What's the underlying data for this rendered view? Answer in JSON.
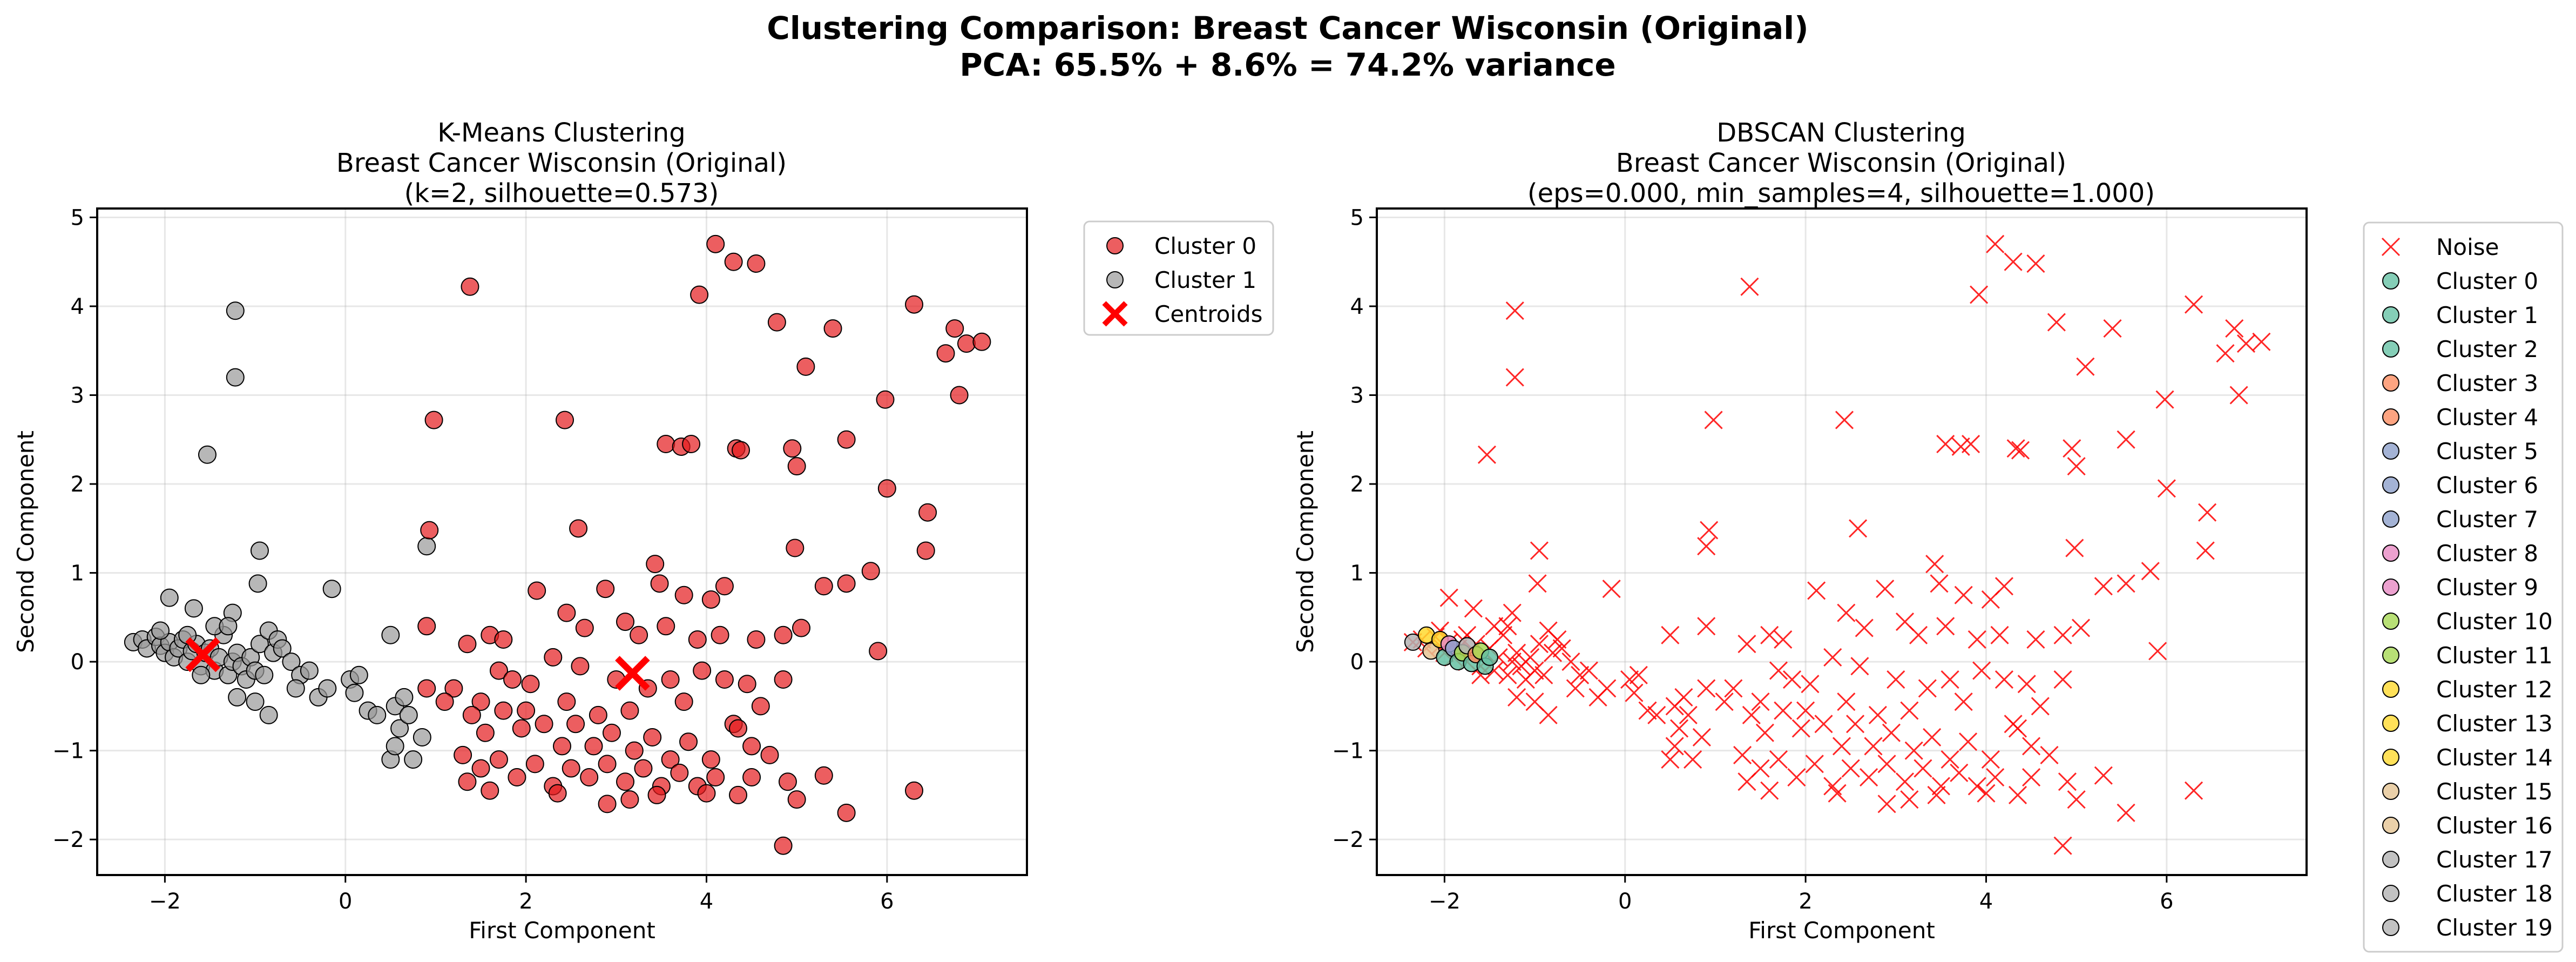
{
  "figure": {
    "title_line1": "Clustering Comparison: Breast Cancer Wisconsin (Original)",
    "title_line2": "PCA: 65.5% + 8.6% = 74.2% variance"
  },
  "colors": {
    "cluster0_red": "#e41a1c",
    "cluster1_gray": "#999999",
    "centroid": "#ff0000",
    "noise": "#ff0000",
    "dbscan_cluster_colors": [
      "#66c2a5",
      "#66c2a5",
      "#66c2a5",
      "#fc8d62",
      "#fc8d62",
      "#8da0cb",
      "#8da0cb",
      "#8da0cb",
      "#e78ac3",
      "#e78ac3",
      "#a6d854",
      "#a6d854",
      "#ffd92f",
      "#ffd92f",
      "#ffd92f",
      "#e5c494",
      "#e5c494",
      "#b3b3b3",
      "#b3b3b3",
      "#b3b3b3"
    ]
  },
  "chart_data": [
    {
      "type": "scatter",
      "title": [
        "K-Means Clustering",
        "Breast Cancer Wisconsin (Original)",
        "(k=2, silhouette=0.573)"
      ],
      "xlabel": "First Component",
      "ylabel": "Second Component",
      "xlim": [
        -2.75,
        7.55
      ],
      "ylim": [
        -2.4,
        5.1
      ],
      "xticks": [
        -2,
        0,
        2,
        4,
        6
      ],
      "yticks": [
        -2,
        -1,
        0,
        1,
        2,
        3,
        4,
        5
      ],
      "grid": true,
      "legend_position": "outside-upper-right",
      "series": [
        {
          "name": "Cluster 0",
          "marker": "circle",
          "color": "#e41a1c",
          "points": [
            [
              4.1,
              4.7
            ],
            [
              4.3,
              4.5
            ],
            [
              4.55,
              4.48
            ],
            [
              1.38,
              4.22
            ],
            [
              3.92,
              4.13
            ],
            [
              4.78,
              3.82
            ],
            [
              6.3,
              4.02
            ],
            [
              5.4,
              3.75
            ],
            [
              6.75,
              3.75
            ],
            [
              6.88,
              3.58
            ],
            [
              7.05,
              3.6
            ],
            [
              6.65,
              3.47
            ],
            [
              5.1,
              3.32
            ],
            [
              6.8,
              3.0
            ],
            [
              5.98,
              2.95
            ],
            [
              0.98,
              2.72
            ],
            [
              2.43,
              2.72
            ],
            [
              5.55,
              2.5
            ],
            [
              3.55,
              2.45
            ],
            [
              3.72,
              2.42
            ],
            [
              3.83,
              2.45
            ],
            [
              4.33,
              2.4
            ],
            [
              4.38,
              2.38
            ],
            [
              4.95,
              2.4
            ],
            [
              5.0,
              2.2
            ],
            [
              6.0,
              1.95
            ],
            [
              6.45,
              1.68
            ],
            [
              0.93,
              1.48
            ],
            [
              2.58,
              1.5
            ],
            [
              4.98,
              1.28
            ],
            [
              6.43,
              1.25
            ],
            [
              5.82,
              1.02
            ],
            [
              3.43,
              1.1
            ],
            [
              5.3,
              0.85
            ],
            [
              5.55,
              0.88
            ],
            [
              4.2,
              0.85
            ],
            [
              2.12,
              0.8
            ],
            [
              2.88,
              0.82
            ],
            [
              3.48,
              0.88
            ],
            [
              3.75,
              0.75
            ],
            [
              4.05,
              0.7
            ],
            [
              0.9,
              0.4
            ],
            [
              1.35,
              0.2
            ],
            [
              1.6,
              0.3
            ],
            [
              1.75,
              0.25
            ],
            [
              2.45,
              0.55
            ],
            [
              2.65,
              0.38
            ],
            [
              3.1,
              0.45
            ],
            [
              3.25,
              0.3
            ],
            [
              3.55,
              0.4
            ],
            [
              3.9,
              0.25
            ],
            [
              4.15,
              0.3
            ],
            [
              4.55,
              0.25
            ],
            [
              4.85,
              0.3
            ],
            [
              5.05,
              0.38
            ],
            [
              5.9,
              0.12
            ],
            [
              0.9,
              -0.3
            ],
            [
              1.2,
              -0.3
            ],
            [
              1.5,
              -0.45
            ],
            [
              1.7,
              -0.1
            ],
            [
              1.85,
              -0.2
            ],
            [
              2.05,
              -0.25
            ],
            [
              2.3,
              0.05
            ],
            [
              2.45,
              -0.45
            ],
            [
              2.6,
              -0.05
            ],
            [
              2.8,
              -0.6
            ],
            [
              3.15,
              -0.55
            ],
            [
              3.35,
              -0.3
            ],
            [
              3.6,
              -0.2
            ],
            [
              3.75,
              -0.45
            ],
            [
              3.95,
              -0.1
            ],
            [
              4.2,
              -0.2
            ],
            [
              4.45,
              -0.25
            ],
            [
              4.6,
              -0.5
            ],
            [
              4.85,
              -0.2
            ],
            [
              1.1,
              -0.45
            ],
            [
              1.4,
              -0.6
            ],
            [
              1.55,
              -0.8
            ],
            [
              1.75,
              -0.55
            ],
            [
              1.95,
              -0.75
            ],
            [
              2.2,
              -0.7
            ],
            [
              2.4,
              -0.95
            ],
            [
              2.55,
              -0.7
            ],
            [
              2.75,
              -0.95
            ],
            [
              2.95,
              -0.8
            ],
            [
              3.2,
              -1.0
            ],
            [
              3.4,
              -0.85
            ],
            [
              3.6,
              -1.1
            ],
            [
              3.8,
              -0.9
            ],
            [
              4.05,
              -1.1
            ],
            [
              4.3,
              -0.7
            ],
            [
              4.5,
              -0.95
            ],
            [
              4.7,
              -1.05
            ],
            [
              1.3,
              -1.05
            ],
            [
              1.5,
              -1.2
            ],
            [
              1.7,
              -1.1
            ],
            [
              1.9,
              -1.3
            ],
            [
              2.1,
              -1.15
            ],
            [
              2.3,
              -1.4
            ],
            [
              2.5,
              -1.2
            ],
            [
              2.7,
              -1.3
            ],
            [
              2.9,
              -1.15
            ],
            [
              3.1,
              -1.35
            ],
            [
              3.3,
              -1.2
            ],
            [
              3.5,
              -1.4
            ],
            [
              3.7,
              -1.25
            ],
            [
              3.9,
              -1.4
            ],
            [
              4.1,
              -1.3
            ],
            [
              1.35,
              -1.35
            ],
            [
              1.6,
              -1.45
            ],
            [
              2.35,
              -1.48
            ],
            [
              2.9,
              -1.6
            ],
            [
              3.15,
              -1.55
            ],
            [
              3.45,
              -1.5
            ],
            [
              4.0,
              -1.48
            ],
            [
              4.35,
              -1.5
            ],
            [
              4.5,
              -1.3
            ],
            [
              4.9,
              -1.35
            ],
            [
              5.0,
              -1.55
            ],
            [
              5.3,
              -1.28
            ],
            [
              5.55,
              -1.7
            ],
            [
              6.3,
              -1.45
            ],
            [
              4.85,
              -2.07
            ],
            [
              4.35,
              -0.75
            ],
            [
              2.0,
              -0.55
            ],
            [
              3.0,
              -0.2
            ]
          ]
        },
        {
          "name": "Cluster 1",
          "marker": "circle",
          "color": "#999999",
          "points": [
            [
              -1.22,
              3.95
            ],
            [
              -1.22,
              3.2
            ],
            [
              -1.53,
              2.33
            ],
            [
              -0.95,
              1.25
            ],
            [
              -0.15,
              0.82
            ],
            [
              0.9,
              1.3
            ],
            [
              -0.97,
              0.88
            ],
            [
              -1.95,
              0.72
            ],
            [
              -1.68,
              0.6
            ],
            [
              -1.25,
              0.55
            ],
            [
              0.5,
              0.3
            ],
            [
              -2.35,
              0.22
            ],
            [
              -2.25,
              0.25
            ],
            [
              -2.2,
              0.15
            ],
            [
              -2.1,
              0.28
            ],
            [
              -2.05,
              0.18
            ],
            [
              -2.0,
              0.1
            ],
            [
              -1.95,
              0.22
            ],
            [
              -1.9,
              0.05
            ],
            [
              -1.85,
              0.15
            ],
            [
              -1.8,
              0.25
            ],
            [
              -1.75,
              0.0
            ],
            [
              -1.7,
              0.12
            ],
            [
              -1.65,
              0.2
            ],
            [
              -1.6,
              -0.05
            ],
            [
              -1.55,
              0.1
            ],
            [
              -1.5,
              0.15
            ],
            [
              -1.45,
              -0.1
            ],
            [
              -1.4,
              0.05
            ],
            [
              -1.35,
              0.3
            ],
            [
              -1.3,
              -0.15
            ],
            [
              -1.25,
              0.0
            ],
            [
              -1.2,
              0.1
            ],
            [
              -1.15,
              -0.05
            ],
            [
              -1.1,
              -0.2
            ],
            [
              -1.05,
              0.05
            ],
            [
              -1.0,
              -0.1
            ],
            [
              -0.95,
              0.2
            ],
            [
              -0.9,
              -0.15
            ],
            [
              -0.85,
              0.35
            ],
            [
              -0.8,
              0.1
            ],
            [
              -0.75,
              0.25
            ],
            [
              -0.7,
              0.15
            ],
            [
              -0.6,
              0.0
            ],
            [
              -0.5,
              -0.15
            ],
            [
              -0.4,
              -0.1
            ],
            [
              -0.3,
              -0.4
            ],
            [
              -0.2,
              -0.3
            ],
            [
              0.05,
              -0.2
            ],
            [
              0.1,
              -0.35
            ],
            [
              0.25,
              -0.55
            ],
            [
              0.35,
              -0.6
            ],
            [
              0.55,
              -0.5
            ],
            [
              0.6,
              -0.75
            ],
            [
              0.65,
              -0.4
            ],
            [
              0.7,
              -0.6
            ],
            [
              0.85,
              -0.85
            ],
            [
              0.75,
              -1.1
            ],
            [
              0.5,
              -1.1
            ],
            [
              0.55,
              -0.95
            ],
            [
              -1.0,
              -0.45
            ],
            [
              -1.2,
              -0.4
            ],
            [
              -0.85,
              -0.6
            ],
            [
              -1.6,
              -0.15
            ],
            [
              -1.75,
              0.3
            ],
            [
              -2.05,
              0.35
            ],
            [
              -1.45,
              0.4
            ],
            [
              -1.3,
              0.4
            ],
            [
              -0.55,
              -0.3
            ],
            [
              0.15,
              -0.15
            ]
          ]
        },
        {
          "name": "Centroids",
          "marker": "x",
          "color": "#ff0000",
          "points": [
            [
              -1.58,
              0.08
            ],
            [
              3.18,
              -0.13
            ]
          ]
        }
      ]
    },
    {
      "type": "scatter",
      "title": [
        "DBSCAN Clustering",
        "Breast Cancer Wisconsin (Original)",
        "(eps=0.000, min_samples=4, silhouette=1.000)"
      ],
      "xlabel": "First Component",
      "ylabel": "Second Component",
      "xlim": [
        -2.75,
        7.55
      ],
      "ylim": [
        -2.4,
        5.1
      ],
      "xticks": [
        -2,
        0,
        2,
        4,
        6
      ],
      "yticks": [
        -2,
        -1,
        0,
        1,
        2,
        3,
        4,
        5
      ],
      "grid": true,
      "legend_position": "outside-upper-right",
      "noise_series": "Noise",
      "legend_entries": [
        "Noise",
        "Cluster 0",
        "Cluster 1",
        "Cluster 2",
        "Cluster 3",
        "Cluster 4",
        "Cluster 5",
        "Cluster 6",
        "Cluster 7",
        "Cluster 8",
        "Cluster 9",
        "Cluster 10",
        "Cluster 11",
        "Cluster 12",
        "Cluster 13",
        "Cluster 14",
        "Cluster 15",
        "Cluster 16",
        "Cluster 17",
        "Cluster 18",
        "Cluster 19"
      ],
      "cluster_points": [
        [
          -2.35,
          0.22
        ],
        [
          -2.2,
          0.3
        ],
        [
          -2.15,
          0.12
        ],
        [
          -2.05,
          0.25
        ],
        [
          -2.0,
          0.05
        ],
        [
          -1.95,
          0.2
        ],
        [
          -1.9,
          0.15
        ],
        [
          -1.85,
          0.0
        ],
        [
          -1.8,
          0.1
        ],
        [
          -1.75,
          0.18
        ],
        [
          -1.7,
          -0.02
        ],
        [
          -1.65,
          0.08
        ],
        [
          -1.6,
          0.12
        ],
        [
          -1.55,
          -0.05
        ],
        [
          -1.5,
          0.05
        ]
      ],
      "cluster_point_colors": [
        "#b3b3b3",
        "#ffd92f",
        "#e5c494",
        "#ffd92f",
        "#66c2a5",
        "#e78ac3",
        "#8da0cb",
        "#66c2a5",
        "#a6d854",
        "#b3b3b3",
        "#66c2a5",
        "#fc8d62",
        "#a6d854",
        "#66c2a5",
        "#66c2a5"
      ]
    }
  ]
}
